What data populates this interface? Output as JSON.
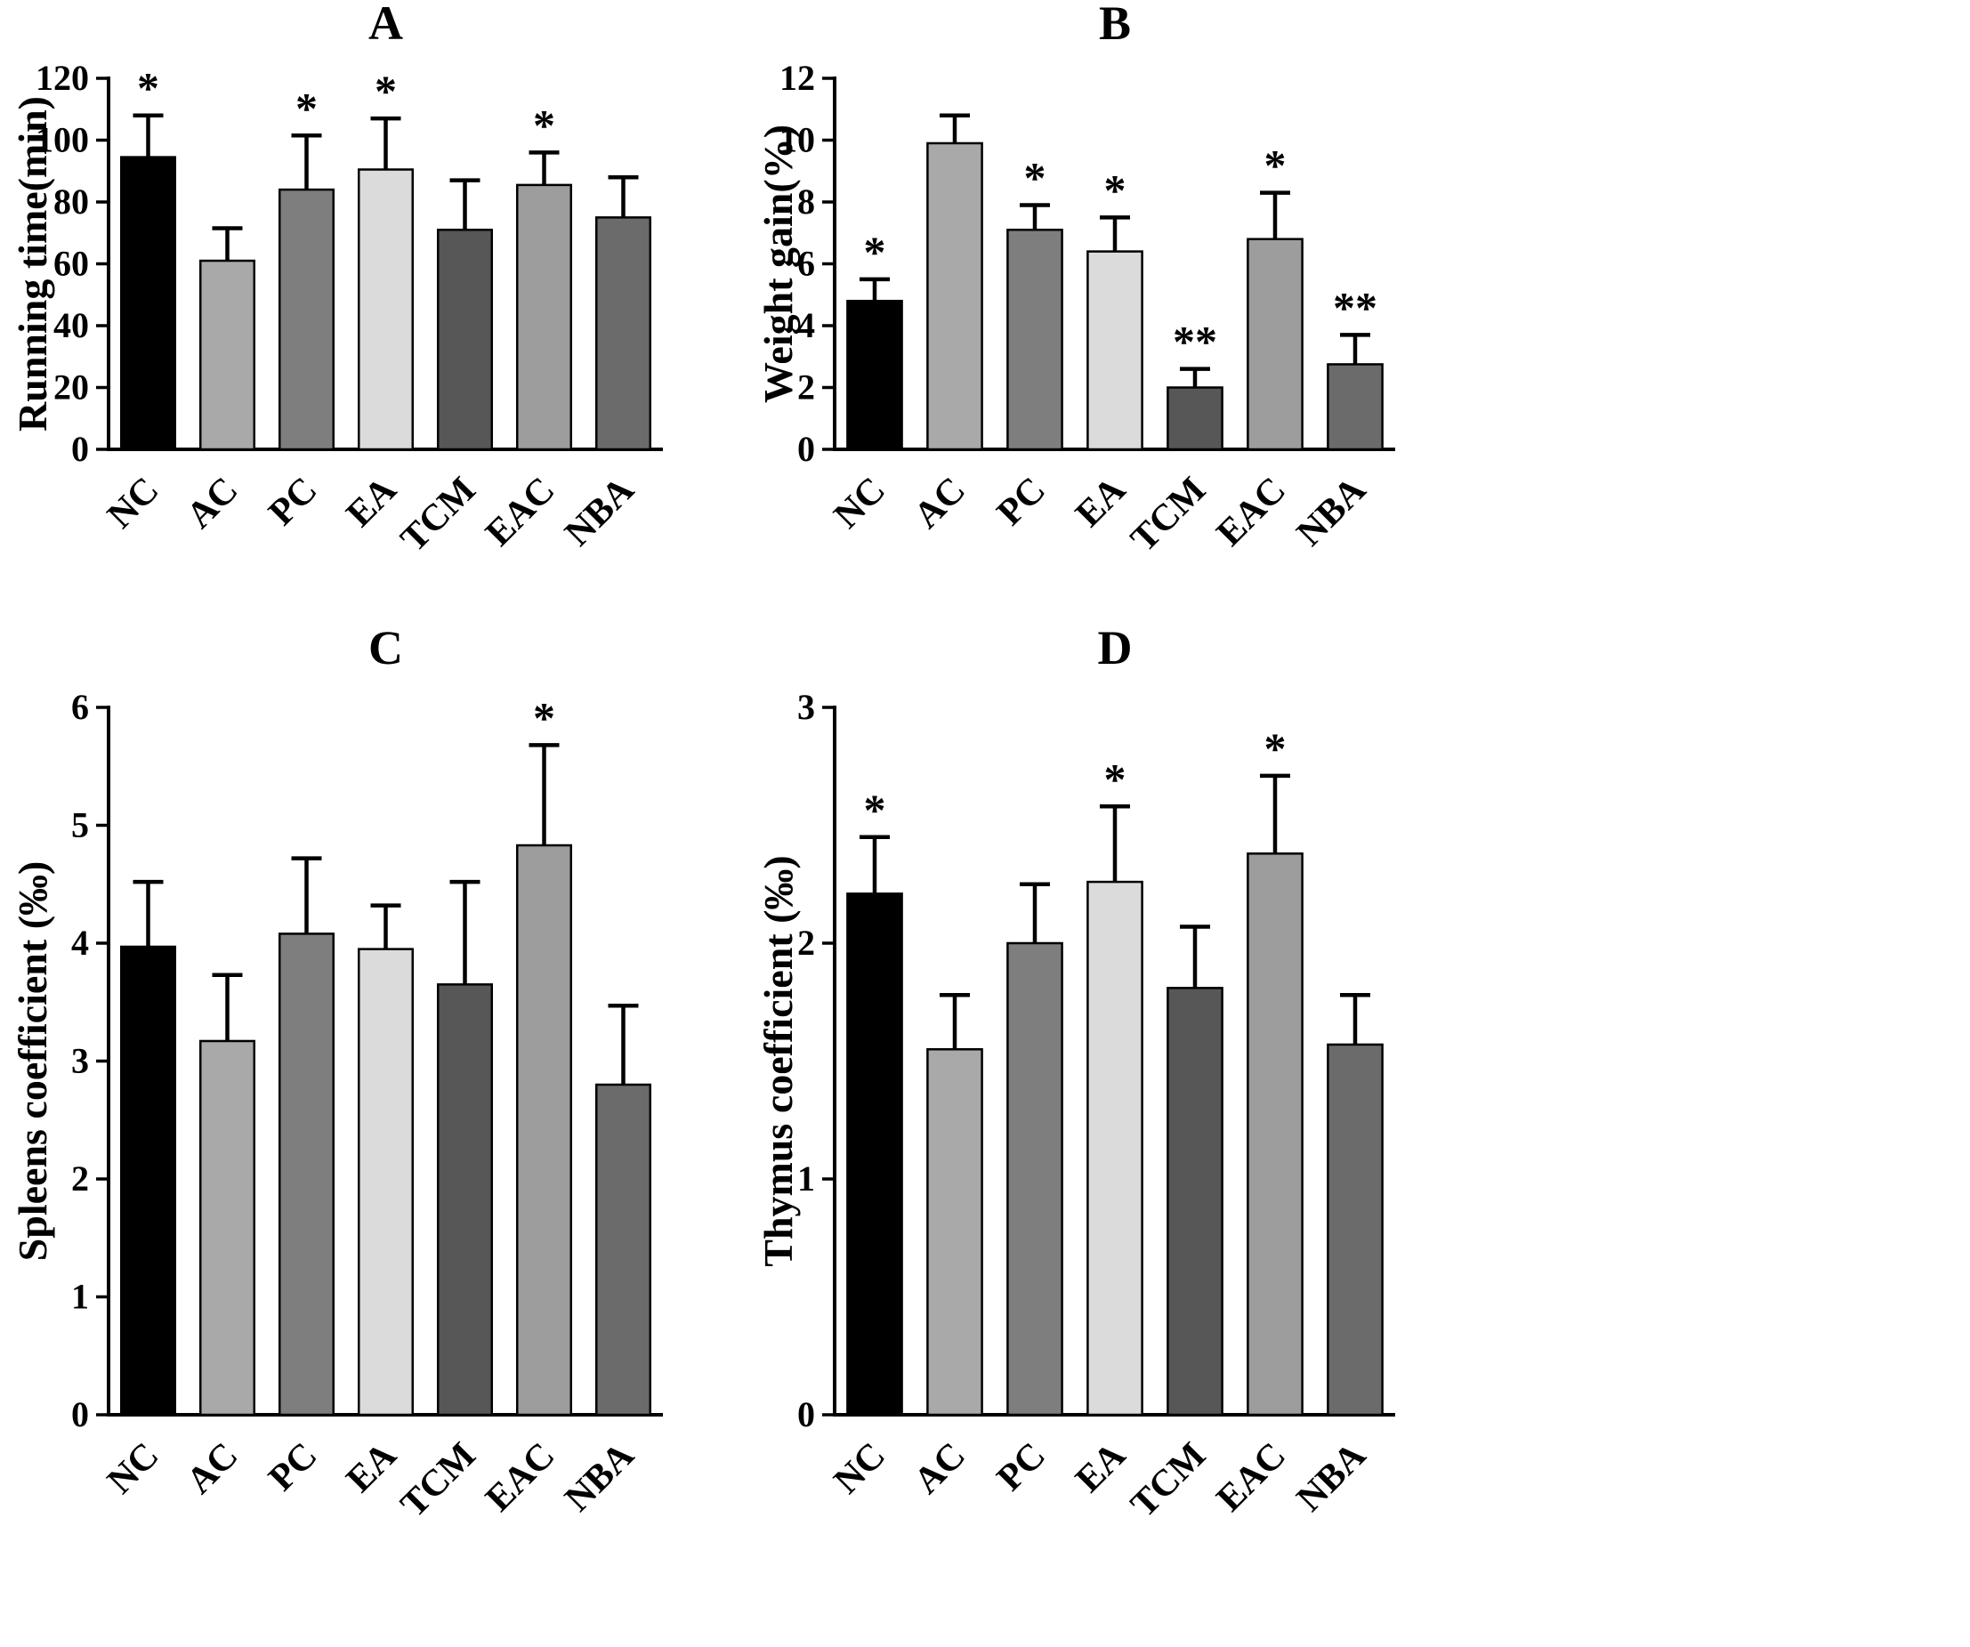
{
  "figure": {
    "background_color": "#ffffff",
    "axis_color": "#000000",
    "error_bar_color": "#000000",
    "bar_colors": [
      "#000000",
      "#a9a9a9",
      "#7e7e7e",
      "#dbdbdb",
      "#575757",
      "#9d9d9d",
      "#6b6b6b"
    ],
    "categories": [
      "NC",
      "AC",
      "PC",
      "EA",
      "TCM",
      "EAC",
      "NBA"
    ]
  },
  "chart_data": [
    {
      "type": "bar",
      "title": "A",
      "xlabel": "",
      "ylabel": "Running time(min)",
      "ylim": [
        0,
        120
      ],
      "yticks": [
        0,
        20,
        40,
        60,
        80,
        100,
        120
      ],
      "categories": [
        "NC",
        "AC",
        "PC",
        "EA",
        "TCM",
        "EAC",
        "NBA"
      ],
      "values": [
        94.5,
        61,
        84,
        90.5,
        71,
        85.5,
        75
      ],
      "errors": [
        13.5,
        10.5,
        17.5,
        16.5,
        16,
        10.5,
        13
      ],
      "significance": [
        "*",
        "",
        "*",
        "*",
        "",
        "*",
        ""
      ],
      "grid": false,
      "legend": false,
      "error_bars": "upper"
    },
    {
      "type": "bar",
      "title": "B",
      "xlabel": "",
      "ylabel": "Weight gain(%)",
      "ylim": [
        0,
        12
      ],
      "yticks": [
        0,
        2,
        4,
        6,
        8,
        10,
        12
      ],
      "categories": [
        "NC",
        "AC",
        "PC",
        "EA",
        "TCM",
        "EAC",
        "NBA"
      ],
      "values": [
        4.8,
        9.9,
        7.1,
        6.4,
        2.0,
        6.8,
        2.75
      ],
      "errors": [
        0.7,
        0.9,
        0.8,
        1.1,
        0.6,
        1.5,
        0.95
      ],
      "significance": [
        "*",
        "",
        "*",
        "*",
        "**",
        "*",
        "**"
      ],
      "grid": false,
      "legend": false,
      "error_bars": "upper"
    },
    {
      "type": "bar",
      "title": "C",
      "xlabel": "",
      "ylabel": "Spleens coefficient (‰)",
      "ylim": [
        0,
        6
      ],
      "yticks": [
        0,
        1,
        2,
        3,
        4,
        5,
        6
      ],
      "categories": [
        "NC",
        "AC",
        "PC",
        "EA",
        "TCM",
        "EAC",
        "NBA"
      ],
      "values": [
        3.97,
        3.17,
        4.08,
        3.95,
        3.65,
        4.83,
        2.8
      ],
      "errors": [
        0.55,
        0.56,
        0.64,
        0.37,
        0.87,
        0.85,
        0.67
      ],
      "significance": [
        "",
        "",
        "",
        "",
        "",
        "*",
        ""
      ],
      "grid": false,
      "legend": false,
      "error_bars": "upper"
    },
    {
      "type": "bar",
      "title": "D",
      "xlabel": "",
      "ylabel": "Thymus coefficient (‰)",
      "ylim": [
        0,
        3
      ],
      "yticks": [
        0,
        1,
        2,
        3
      ],
      "categories": [
        "NC",
        "AC",
        "PC",
        "EA",
        "TCM",
        "EAC",
        "NBA"
      ],
      "values": [
        2.21,
        1.55,
        2.0,
        2.26,
        1.81,
        2.38,
        1.57
      ],
      "errors": [
        0.24,
        0.23,
        0.25,
        0.32,
        0.26,
        0.33,
        0.21
      ],
      "significance": [
        "*",
        "",
        "",
        "*",
        "",
        "*",
        ""
      ],
      "grid": false,
      "legend": false,
      "error_bars": "upper"
    }
  ]
}
